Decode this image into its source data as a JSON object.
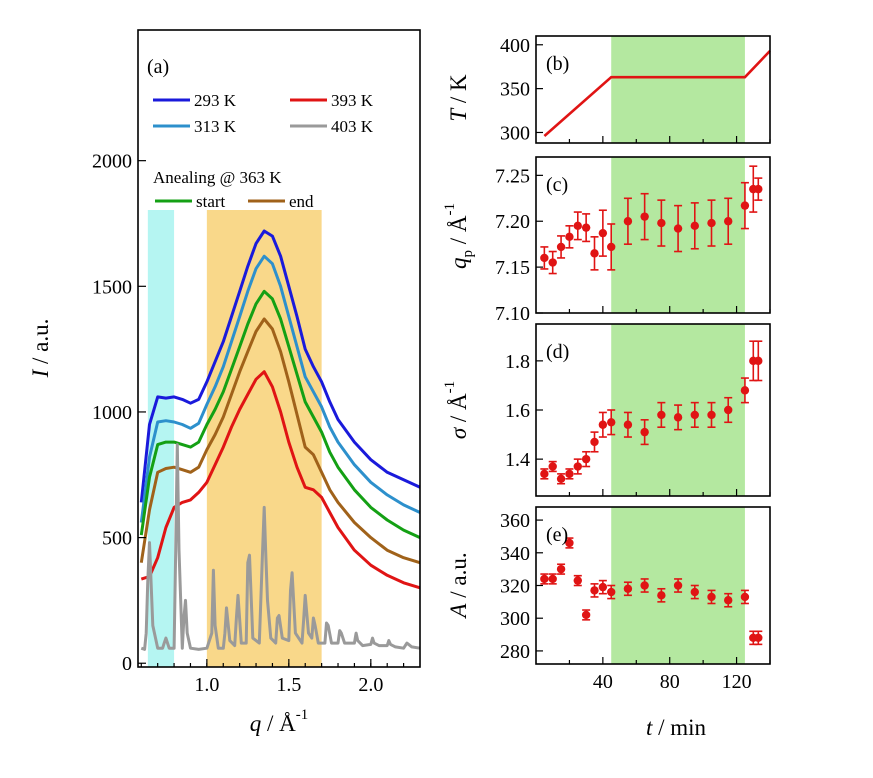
{
  "colors": {
    "c293": "#1a1adb",
    "c313": "#2d90cc",
    "c393": "#e01414",
    "c403": "#9a9a9a",
    "start": "#14a014",
    "end": "#a0621a",
    "cyan_band": "#b5f5f2",
    "orange_band": "#f9d88a",
    "green_band": "#b4e8a0",
    "marker": "#e01414"
  },
  "chart_data": [
    {
      "id": "a",
      "panel_label": "(a)",
      "type": "line",
      "xlabel_var": "q",
      "xlabel_unit": "Å",
      "xlabel_exp": "-1",
      "ylabel_var": "I",
      "ylabel_unit": "a.u.",
      "xlim": [
        0.58,
        2.3
      ],
      "ylim": [
        -15,
        2520
      ],
      "xticks": [
        1.0,
        1.5,
        2.0
      ],
      "xtick_labels": [
        "1.0",
        "1.5",
        "2.0"
      ],
      "yticks": [
        0,
        500,
        1000,
        1500,
        2000
      ],
      "ytick_labels": [
        "0",
        "500",
        "1000",
        "1500",
        "2000"
      ],
      "bands": [
        {
          "from": 0.64,
          "to": 0.8,
          "color_key": "cyan_band"
        },
        {
          "from": 1.0,
          "to": 1.7,
          "color_key": "orange_band"
        }
      ],
      "legend": {
        "entries": [
          {
            "label": "293 K",
            "color_key": "c293"
          },
          {
            "label": "313 K",
            "color_key": "c313"
          },
          {
            "label": "393 K",
            "color_key": "c393"
          },
          {
            "label": "403 K",
            "color_key": "c403"
          }
        ],
        "annealing_title": "Anealing @ 363 K",
        "annealing_entries": [
          {
            "label": "start",
            "color_key": "start"
          },
          {
            "label": "end",
            "color_key": "end"
          }
        ]
      },
      "series": [
        {
          "name": "293 K",
          "color_key": "c293",
          "x": [
            0.6,
            0.65,
            0.7,
            0.75,
            0.8,
            0.85,
            0.9,
            0.95,
            1.0,
            1.05,
            1.1,
            1.15,
            1.2,
            1.25,
            1.3,
            1.35,
            1.4,
            1.45,
            1.5,
            1.55,
            1.6,
            1.65,
            1.7,
            1.75,
            1.8,
            1.9,
            2.0,
            2.1,
            2.2,
            2.3
          ],
          "y": [
            640,
            950,
            1060,
            1055,
            1060,
            1050,
            1035,
            1050,
            1120,
            1200,
            1280,
            1380,
            1480,
            1580,
            1670,
            1720,
            1700,
            1620,
            1500,
            1380,
            1250,
            1180,
            1120,
            1040,
            970,
            880,
            810,
            760,
            730,
            700
          ]
        },
        {
          "name": "313 K",
          "color_key": "c313",
          "x": [
            0.6,
            0.65,
            0.7,
            0.75,
            0.8,
            0.85,
            0.9,
            0.95,
            1.0,
            1.05,
            1.1,
            1.15,
            1.2,
            1.25,
            1.3,
            1.35,
            1.4,
            1.45,
            1.5,
            1.55,
            1.6,
            1.65,
            1.7,
            1.75,
            1.8,
            1.9,
            2.0,
            2.1,
            2.2,
            2.3
          ],
          "y": [
            560,
            820,
            960,
            965,
            960,
            950,
            935,
            955,
            1030,
            1100,
            1180,
            1280,
            1380,
            1480,
            1570,
            1620,
            1590,
            1500,
            1380,
            1260,
            1140,
            1080,
            1020,
            940,
            880,
            790,
            720,
            670,
            630,
            600
          ]
        },
        {
          "name": "start",
          "color_key": "start",
          "x": [
            0.6,
            0.65,
            0.7,
            0.75,
            0.8,
            0.85,
            0.9,
            0.95,
            1.0,
            1.05,
            1.1,
            1.15,
            1.2,
            1.25,
            1.3,
            1.35,
            1.4,
            1.45,
            1.5,
            1.55,
            1.6,
            1.65,
            1.7,
            1.75,
            1.8,
            1.9,
            2.0,
            2.1,
            2.2,
            2.3
          ],
          "y": [
            510,
            740,
            870,
            880,
            880,
            870,
            860,
            880,
            950,
            1010,
            1080,
            1170,
            1260,
            1350,
            1430,
            1480,
            1450,
            1370,
            1260,
            1150,
            1040,
            980,
            920,
            840,
            780,
            690,
            620,
            570,
            530,
            500
          ]
        },
        {
          "name": "end",
          "color_key": "end",
          "x": [
            0.6,
            0.65,
            0.7,
            0.75,
            0.8,
            0.85,
            0.9,
            0.95,
            1.0,
            1.05,
            1.1,
            1.15,
            1.2,
            1.25,
            1.3,
            1.35,
            1.4,
            1.45,
            1.5,
            1.55,
            1.6,
            1.65,
            1.7,
            1.75,
            1.8,
            1.9,
            2.0,
            2.1,
            2.2,
            2.3
          ],
          "y": [
            400,
            610,
            760,
            775,
            780,
            770,
            760,
            780,
            850,
            910,
            980,
            1070,
            1160,
            1240,
            1320,
            1370,
            1330,
            1240,
            1120,
            990,
            860,
            830,
            760,
            690,
            640,
            560,
            500,
            450,
            420,
            400
          ]
        },
        {
          "name": "393 K",
          "color_key": "c393",
          "x": [
            0.6,
            0.65,
            0.7,
            0.75,
            0.8,
            0.85,
            0.9,
            0.95,
            1.0,
            1.05,
            1.1,
            1.15,
            1.2,
            1.25,
            1.3,
            1.35,
            1.4,
            1.45,
            1.5,
            1.55,
            1.6,
            1.65,
            1.7,
            1.75,
            1.8,
            1.9,
            2.0,
            2.1,
            2.2,
            2.3
          ],
          "y": [
            335,
            345,
            420,
            540,
            620,
            640,
            650,
            680,
            720,
            790,
            860,
            940,
            1010,
            1070,
            1130,
            1160,
            1100,
            1000,
            880,
            780,
            700,
            690,
            660,
            600,
            540,
            450,
            390,
            350,
            320,
            300
          ]
        },
        {
          "name": "403 K",
          "color_key": "c403",
          "x": [
            0.6,
            0.62,
            0.63,
            0.64,
            0.65,
            0.67,
            0.7,
            0.73,
            0.74,
            0.75,
            0.77,
            0.8,
            0.81,
            0.82,
            0.83,
            0.85,
            0.86,
            0.87,
            0.88,
            0.9,
            0.95,
            1.0,
            1.03,
            1.04,
            1.05,
            1.07,
            1.1,
            1.11,
            1.12,
            1.14,
            1.17,
            1.18,
            1.19,
            1.21,
            1.24,
            1.25,
            1.26,
            1.28,
            1.32,
            1.33,
            1.34,
            1.35,
            1.36,
            1.37,
            1.39,
            1.42,
            1.43,
            1.44,
            1.46,
            1.5,
            1.51,
            1.52,
            1.54,
            1.58,
            1.59,
            1.6,
            1.62,
            1.64,
            1.65,
            1.66,
            1.68,
            1.72,
            1.73,
            1.74,
            1.76,
            1.8,
            1.81,
            1.82,
            1.84,
            1.9,
            1.91,
            1.92,
            1.95,
            2.0,
            2.01,
            2.02,
            2.05,
            2.1,
            2.11,
            2.12,
            2.15,
            2.2,
            2.22,
            2.25,
            2.3
          ],
          "y": [
            60,
            55,
            120,
            330,
            480,
            150,
            60,
            60,
            80,
            100,
            60,
            60,
            450,
            870,
            450,
            60,
            180,
            250,
            120,
            60,
            55,
            60,
            120,
            370,
            150,
            60,
            60,
            120,
            220,
            90,
            70,
            180,
            270,
            80,
            80,
            400,
            430,
            100,
            80,
            270,
            450,
            620,
            420,
            250,
            100,
            80,
            180,
            190,
            100,
            90,
            290,
            360,
            120,
            80,
            170,
            270,
            120,
            100,
            180,
            150,
            80,
            80,
            160,
            150,
            80,
            80,
            130,
            120,
            80,
            80,
            120,
            90,
            70,
            75,
            100,
            80,
            70,
            70,
            90,
            75,
            65,
            60,
            80,
            65,
            60
          ]
        }
      ]
    },
    {
      "id": "b",
      "panel_label": "(b)",
      "type": "line",
      "ylabel_var": "T",
      "ylabel_unit": "K",
      "xlim": [
        0,
        140
      ],
      "ylim": [
        288,
        410
      ],
      "yticks": [
        300,
        350,
        400
      ],
      "ytick_labels": [
        "300",
        "350",
        "400"
      ],
      "highlight": {
        "from": 45,
        "to": 125,
        "color_key": "green_band"
      },
      "x": [
        5,
        45,
        125,
        140
      ],
      "y": [
        296,
        363,
        363,
        393
      ],
      "color_key": "c393"
    },
    {
      "id": "c",
      "panel_label": "(c)",
      "type": "scatter",
      "ylabel_var": "q",
      "ylabel_sub": "p",
      "ylabel_unit": "Å",
      "ylabel_exp": "-1",
      "xlim": [
        0,
        140
      ],
      "ylim": [
        7.1,
        7.27
      ],
      "yticks": [
        7.1,
        7.15,
        7.2,
        7.25
      ],
      "ytick_labels": [
        "7.10",
        "7.15",
        "7.20",
        "7.25"
      ],
      "highlight": {
        "from": 45,
        "to": 125,
        "color_key": "green_band"
      },
      "x": [
        5,
        10,
        15,
        20,
        25,
        30,
        35,
        40,
        45,
        55,
        65,
        75,
        85,
        95,
        105,
        115,
        125,
        130,
        133
      ],
      "y": [
        7.16,
        7.155,
        7.172,
        7.183,
        7.195,
        7.193,
        7.165,
        7.187,
        7.172,
        7.2,
        7.205,
        7.198,
        7.192,
        7.195,
        7.198,
        7.2,
        7.217,
        7.235,
        7.235
      ],
      "err": [
        0.012,
        0.012,
        0.012,
        0.012,
        0.015,
        0.015,
        0.018,
        0.025,
        0.025,
        0.025,
        0.025,
        0.025,
        0.025,
        0.025,
        0.025,
        0.025,
        0.025,
        0.025,
        0.012
      ]
    },
    {
      "id": "d",
      "panel_label": "(d)",
      "type": "scatter",
      "ylabel_var": "σ",
      "ylabel_unit": "Å",
      "ylabel_exp": "-1",
      "xlim": [
        0,
        140
      ],
      "ylim": [
        1.25,
        1.95
      ],
      "yticks": [
        1.4,
        1.6,
        1.8
      ],
      "ytick_labels": [
        "1.4",
        "1.6",
        "1.8"
      ],
      "highlight": {
        "from": 45,
        "to": 125,
        "color_key": "green_band"
      },
      "x": [
        5,
        10,
        15,
        20,
        25,
        30,
        35,
        40,
        45,
        55,
        65,
        75,
        85,
        95,
        105,
        115,
        125,
        130,
        133
      ],
      "y": [
        1.34,
        1.37,
        1.32,
        1.34,
        1.37,
        1.4,
        1.47,
        1.54,
        1.55,
        1.54,
        1.51,
        1.58,
        1.57,
        1.58,
        1.58,
        1.6,
        1.68,
        1.8,
        1.8
      ],
      "err": [
        0.02,
        0.02,
        0.02,
        0.02,
        0.03,
        0.03,
        0.04,
        0.05,
        0.05,
        0.05,
        0.05,
        0.05,
        0.05,
        0.05,
        0.05,
        0.05,
        0.05,
        0.08,
        0.08
      ]
    },
    {
      "id": "e",
      "panel_label": "(e)",
      "type": "scatter",
      "ylabel_var": "A",
      "ylabel_unit": "a.u.",
      "xlim": [
        0,
        140
      ],
      "ylim": [
        272,
        368
      ],
      "yticks": [
        280,
        300,
        320,
        340,
        360
      ],
      "ytick_labels": [
        "280",
        "300",
        "320",
        "340",
        "360"
      ],
      "xticks": [
        40,
        80,
        120
      ],
      "xtick_labels": [
        "40",
        "80",
        "120"
      ],
      "xlabel_var": "t",
      "xlabel_unit": "min",
      "highlight": {
        "from": 45,
        "to": 125,
        "color_key": "green_band"
      },
      "x": [
        5,
        10,
        15,
        20,
        25,
        30,
        35,
        40,
        45,
        55,
        65,
        75,
        85,
        95,
        105,
        115,
        125,
        130,
        133
      ],
      "y": [
        324,
        324,
        330,
        346,
        323,
        302,
        317,
        319,
        316,
        318,
        320,
        314,
        320,
        316,
        313,
        311,
        313,
        288,
        288
      ],
      "err": [
        3,
        3,
        3,
        3,
        3,
        3,
        4,
        4,
        4,
        4,
        4,
        4,
        4,
        4,
        4,
        4,
        4,
        4,
        4
      ]
    }
  ]
}
